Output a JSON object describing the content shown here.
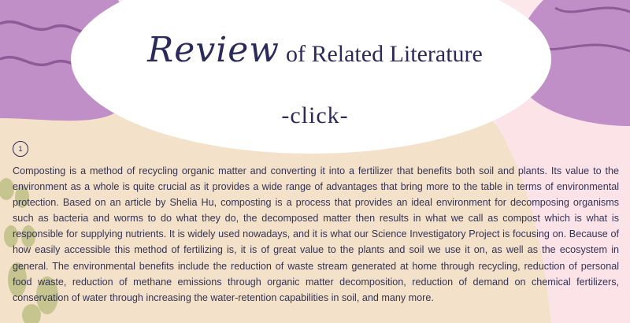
{
  "title": {
    "script": "Review",
    "rest": "of Related Literature"
  },
  "click_label": "-click-",
  "item_number": "1",
  "body": "Composting is a method of recycling organic matter and converting it into a fertilizer that benefits both soil and plants. Its value to the environment as a whole is quite crucial as it provides a wide range of advantages that bring more to the table in terms of environmental protection. Based on an article by Shelia Hu, composting is a process that provides an ideal environment for decomposing organisms such as bacteria and worms to do what they do, the decomposed matter then results in what we call as compost which is what is responsible for supplying nutrients. It is widely used nowadays, and it is what our Science Investigatory Project is focusing on. Because of how easily accessible this method of fertilizing is, it is of great value to the plants and soil we use it on, as well as the ecosystem in general. The environmental benefits include the reduction of waste stream generated at home through recycling, reduction of personal food waste, reduction of methane emissions through organic matter decomposition, reduction of demand on chemical fertilizers, conservation of water through increasing the water-retention capabilities in soil, and many more.",
  "colors": {
    "background_pink": "#fce8ea",
    "beige": "#f4e1c9",
    "lavender": "#c08fc8",
    "lavender_line": "#8e5a98",
    "olive": "#c6c48f",
    "navy_text": "#2b2a5c"
  }
}
